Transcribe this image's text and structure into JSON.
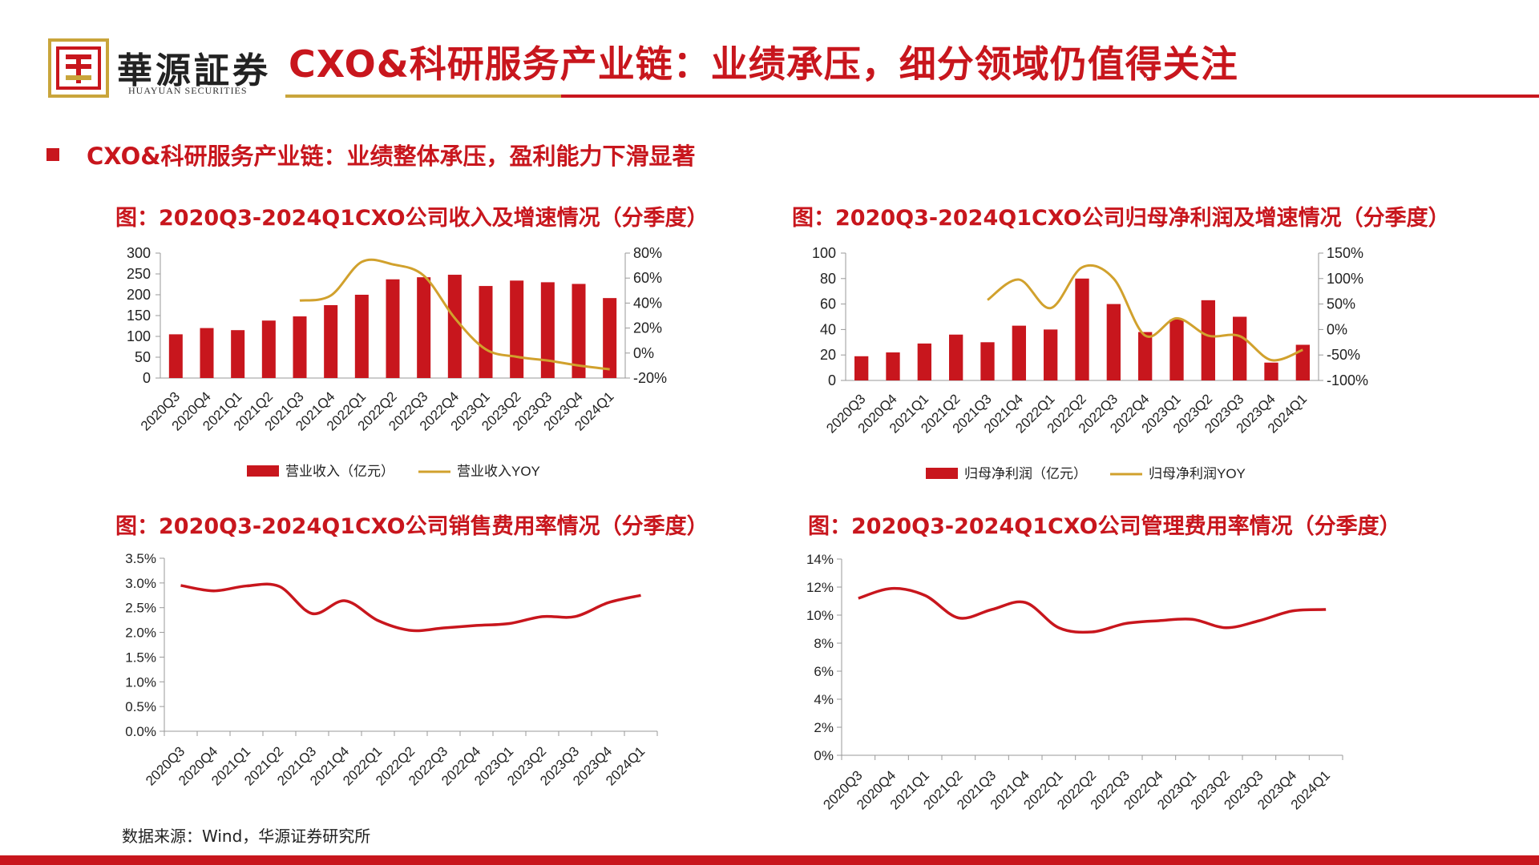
{
  "brand": {
    "name_cn": "華源証券",
    "name_en": "HUAYUAN SECURITIES",
    "primary_color": "#c8161d",
    "accent_color": "#c9a53b"
  },
  "header": {
    "title": "CXO&科研服务产业链：业绩承压，细分领域仍值得关注"
  },
  "section": {
    "marker_icon": "square-bullet-icon",
    "heading": "CXO&科研服务产业链：业绩整体承压，盈利能力下滑显著"
  },
  "footer": {
    "source": "数据来源：Wind，华源证券研究所"
  },
  "chart_data": [
    {
      "type": "bar",
      "title": "图：2020Q3-2024Q1CXO公司收入及增速情况（分季度）",
      "categories": [
        "2020Q3",
        "2020Q4",
        "2021Q1",
        "2021Q2",
        "2021Q3",
        "2021Q4",
        "2022Q1",
        "2022Q2",
        "2022Q3",
        "2022Q4",
        "2023Q1",
        "2023Q2",
        "2023Q3",
        "2023Q4",
        "2024Q1"
      ],
      "series": [
        {
          "name": "营业收入（亿元）",
          "type": "bar",
          "axis": "left",
          "color": "#c8161d",
          "values": [
            105,
            120,
            115,
            138,
            148,
            175,
            200,
            237,
            242,
            248,
            221,
            234,
            230,
            226,
            192
          ]
        },
        {
          "name": "营业收入YOY",
          "type": "line",
          "axis": "right",
          "color": "#d1a12d",
          "values": [
            null,
            null,
            null,
            null,
            42,
            46,
            73,
            71,
            62,
            28,
            3,
            -3,
            -6,
            -10,
            -13
          ]
        }
      ],
      "ylim": [
        0,
        300
      ],
      "yticks": [
        "300",
        "250",
        "200",
        "150",
        "100",
        "50",
        "0"
      ],
      "y2lim": [
        -20,
        80
      ],
      "y2ticks": [
        "80%",
        "60%",
        "40%",
        "20%",
        "0%",
        "-20%"
      ],
      "legend_position": "bottom"
    },
    {
      "type": "bar",
      "title": "图：2020Q3-2024Q1CXO公司归母净利润及增速情况（分季度）",
      "categories": [
        "2020Q3",
        "2020Q4",
        "2021Q1",
        "2021Q2",
        "2021Q3",
        "2021Q4",
        "2022Q1",
        "2022Q2",
        "2022Q3",
        "2022Q4",
        "2023Q1",
        "2023Q2",
        "2023Q3",
        "2023Q4",
        "2024Q1"
      ],
      "series": [
        {
          "name": "归母净利润（亿元）",
          "type": "bar",
          "axis": "left",
          "color": "#c8161d",
          "values": [
            19,
            22,
            29,
            36,
            30,
            43,
            40,
            80,
            60,
            38,
            48,
            63,
            50,
            14,
            28
          ]
        },
        {
          "name": "归母净利润YOY",
          "type": "line",
          "axis": "right",
          "color": "#d1a12d",
          "values": [
            null,
            null,
            null,
            null,
            58,
            98,
            42,
            122,
            100,
            -12,
            22,
            -12,
            -13,
            -60,
            -40
          ]
        }
      ],
      "ylim": [
        0,
        100
      ],
      "yticks": [
        "100",
        "80",
        "60",
        "40",
        "20",
        "0"
      ],
      "y2lim": [
        -100,
        150
      ],
      "y2ticks": [
        "150%",
        "100%",
        "50%",
        "0%",
        "-50%",
        "-100%"
      ],
      "legend_position": "bottom"
    },
    {
      "type": "line",
      "title": "图：2020Q3-2024Q1CXO公司销售费用率情况（分季度）",
      "categories": [
        "2020Q3",
        "2020Q4",
        "2021Q1",
        "2021Q2",
        "2021Q3",
        "2021Q4",
        "2022Q1",
        "2022Q2",
        "2022Q3",
        "2022Q4",
        "2023Q1",
        "2023Q2",
        "2023Q3",
        "2023Q4",
        "2024Q1"
      ],
      "series": [
        {
          "color": "#c8161d",
          "values": [
            2.95,
            2.84,
            2.94,
            2.93,
            2.38,
            2.64,
            2.24,
            2.04,
            2.09,
            2.14,
            2.18,
            2.32,
            2.32,
            2.6,
            2.75
          ]
        }
      ],
      "ylim": [
        0,
        3.5
      ],
      "yticks": [
        "3.5%",
        "3.0%",
        "2.5%",
        "2.0%",
        "1.5%",
        "1.0%",
        "0.5%",
        "0.0%"
      ]
    },
    {
      "type": "line",
      "title": "图：2020Q3-2024Q1CXO公司管理费用率情况（分季度）",
      "categories": [
        "2020Q3",
        "2020Q4",
        "2021Q1",
        "2021Q2",
        "2021Q3",
        "2021Q4",
        "2022Q1",
        "2022Q2",
        "2022Q3",
        "2022Q4",
        "2023Q1",
        "2023Q2",
        "2023Q3",
        "2023Q4",
        "2024Q1"
      ],
      "series": [
        {
          "color": "#c8161d",
          "values": [
            11.2,
            11.9,
            11.4,
            9.8,
            10.4,
            10.9,
            9.1,
            8.8,
            9.4,
            9.6,
            9.7,
            9.1,
            9.6,
            10.3,
            10.4
          ]
        }
      ],
      "ylim": [
        0,
        14
      ],
      "yticks": [
        "14%",
        "12%",
        "10%",
        "8%",
        "6%",
        "4%",
        "2%",
        "0%"
      ]
    }
  ]
}
